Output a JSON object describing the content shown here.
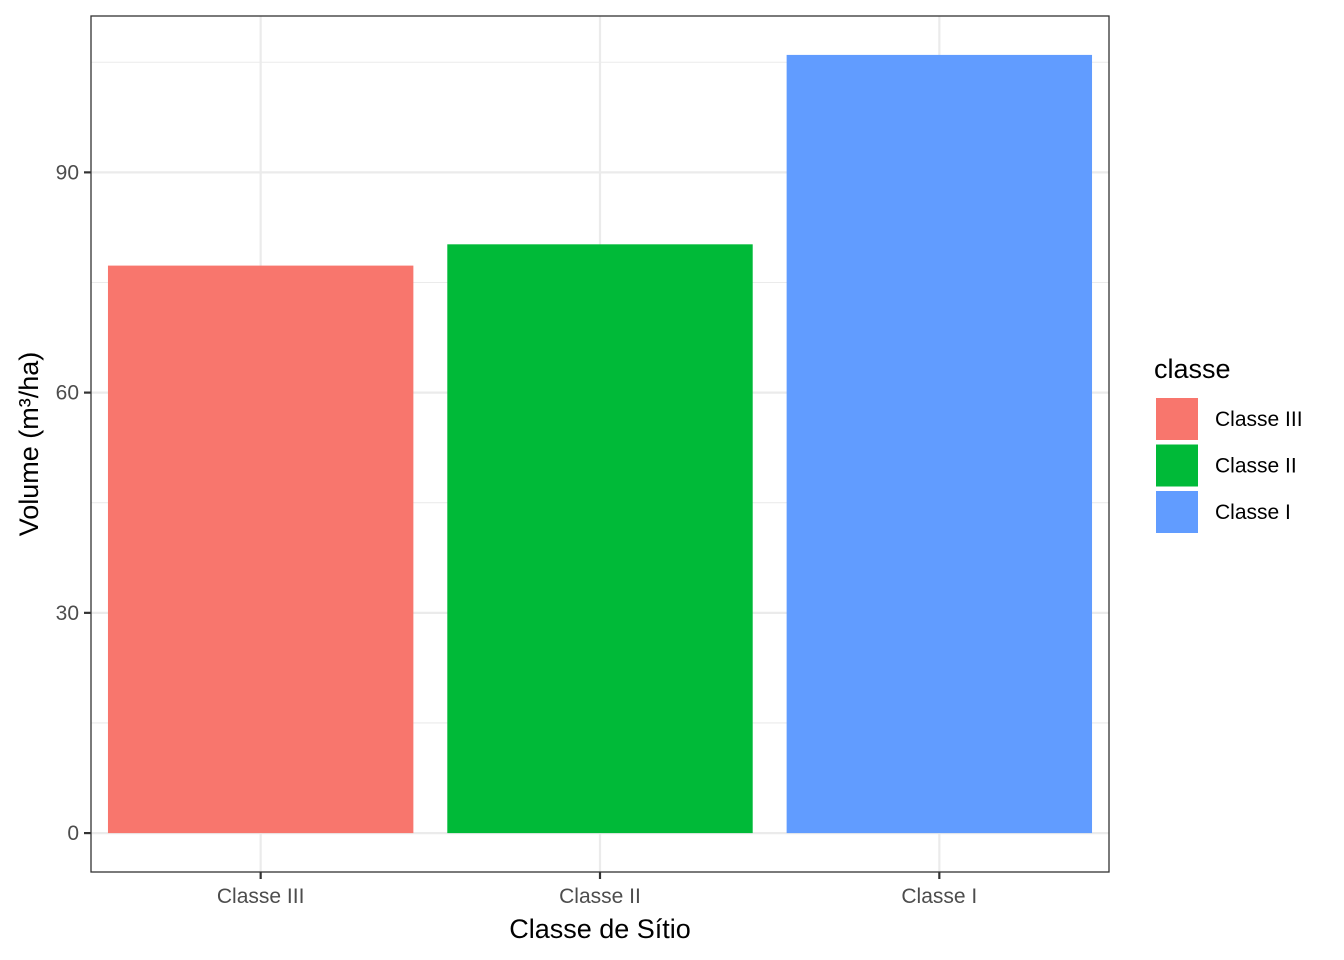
{
  "chart_data": {
    "type": "bar",
    "categories": [
      "Classe III",
      "Classe II",
      "Classe I"
    ],
    "values": [
      77.3,
      80.2,
      106.0
    ],
    "colors": [
      "#F8766D",
      "#00BA38",
      "#619CFF"
    ],
    "xlabel": "Classe de Sítio",
    "ylabel": "Volume (m³/ha)",
    "ylim": [
      -5.3,
      111.3
    ],
    "yticks": [
      0,
      30,
      60,
      90
    ],
    "yticks_minor": [
      15,
      45,
      75,
      105
    ],
    "grid": true,
    "legend": {
      "title": "classe",
      "position": "right",
      "entries": [
        "Classe III",
        "Classe II",
        "Classe I"
      ]
    }
  }
}
